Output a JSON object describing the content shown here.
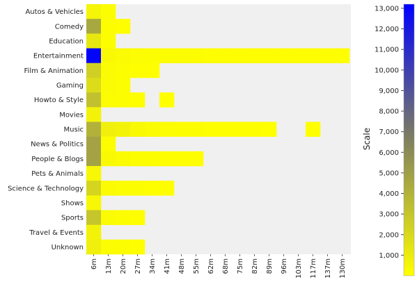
{
  "chart_data": {
    "type": "heatmap",
    "title": "",
    "xlabel": "",
    "ylabel": "",
    "categories_y": [
      "Autos & Vehicles",
      "Comedy",
      "Education",
      "Entertainment",
      "Film & Animation",
      "Gaming",
      "Howto & Style",
      "Movies",
      "Music",
      "News & Politics",
      "People & Blogs",
      "Pets & Animals",
      "Science & Technology",
      "Shows",
      "Sports",
      "Travel & Events",
      "Unknown"
    ],
    "categories_x": [
      "6m",
      "13m",
      "20m",
      "27m",
      "34m",
      "41m",
      "48m",
      "55m",
      "62m",
      "68m",
      "75m",
      "82m",
      "89m",
      "96m",
      "103m",
      "117m",
      "137m",
      "130m"
    ],
    "values": [
      [
        500,
        100,
        null,
        null,
        null,
        null,
        null,
        null,
        null,
        null,
        null,
        null,
        null,
        null,
        null,
        null,
        null,
        null
      ],
      [
        4500,
        100,
        50,
        null,
        null,
        null,
        null,
        null,
        null,
        null,
        null,
        null,
        null,
        null,
        null,
        null,
        null,
        null
      ],
      [
        1200,
        100,
        null,
        null,
        null,
        null,
        null,
        null,
        null,
        null,
        null,
        null,
        null,
        null,
        null,
        null,
        null,
        null
      ],
      [
        13000,
        300,
        200,
        150,
        100,
        100,
        80,
        80,
        70,
        60,
        60,
        50,
        50,
        40,
        40,
        30,
        30,
        30
      ],
      [
        2500,
        200,
        100,
        50,
        30,
        null,
        null,
        null,
        null,
        null,
        null,
        null,
        null,
        null,
        null,
        null,
        null,
        null
      ],
      [
        1800,
        200,
        100,
        null,
        null,
        null,
        null,
        null,
        null,
        null,
        null,
        null,
        null,
        null,
        null,
        null,
        null,
        null
      ],
      [
        3200,
        150,
        80,
        40,
        null,
        20,
        null,
        null,
        null,
        null,
        null,
        null,
        null,
        null,
        null,
        null,
        null,
        null
      ],
      [
        600,
        null,
        null,
        null,
        null,
        null,
        null,
        null,
        null,
        null,
        null,
        null,
        null,
        null,
        null,
        null,
        null,
        null
      ],
      [
        4000,
        800,
        600,
        300,
        200,
        150,
        100,
        80,
        60,
        50,
        40,
        30,
        20,
        null,
        null,
        10,
        null,
        null
      ],
      [
        4800,
        100,
        null,
        null,
        null,
        null,
        null,
        null,
        null,
        null,
        null,
        null,
        null,
        null,
        null,
        null,
        null,
        null
      ],
      [
        4800,
        300,
        200,
        100,
        80,
        60,
        40,
        30,
        null,
        null,
        null,
        null,
        null,
        null,
        null,
        null,
        null,
        null
      ],
      [
        400,
        null,
        null,
        null,
        null,
        null,
        null,
        null,
        null,
        null,
        null,
        null,
        null,
        null,
        null,
        null,
        null,
        null
      ],
      [
        2200,
        200,
        100,
        80,
        50,
        30,
        null,
        null,
        null,
        null,
        null,
        null,
        null,
        null,
        null,
        null,
        null,
        null
      ],
      [
        400,
        null,
        null,
        null,
        null,
        null,
        null,
        null,
        null,
        null,
        null,
        null,
        null,
        null,
        null,
        null,
        null,
        null
      ],
      [
        3000,
        200,
        100,
        50,
        null,
        null,
        null,
        null,
        null,
        null,
        null,
        null,
        null,
        null,
        null,
        null,
        null,
        null
      ],
      [
        600,
        null,
        null,
        null,
        null,
        null,
        null,
        null,
        null,
        null,
        null,
        null,
        null,
        null,
        null,
        null,
        null,
        null
      ],
      [
        800,
        150,
        100,
        50,
        null,
        null,
        null,
        null,
        null,
        null,
        null,
        null,
        null,
        null,
        null,
        null,
        null,
        null
      ]
    ],
    "scale": {
      "label": "Scale",
      "min": 0,
      "max": 13200,
      "ticks": [
        1000,
        2000,
        3000,
        4000,
        5000,
        6000,
        7000,
        8000,
        9000,
        10000,
        11000,
        12000,
        13000
      ],
      "tick_labels": [
        "1,000",
        "2,000",
        "3,000",
        "4,000",
        "5,000",
        "6,000",
        "7,000",
        "8,000",
        "9,000",
        "10,000",
        "11,000",
        "12,000",
        "13,000"
      ],
      "color_low": "#ffff00",
      "color_mid": "#808060",
      "color_high": "#0000ff"
    },
    "background_color": "#f0f0f0",
    "grid": false,
    "legend": "right"
  }
}
